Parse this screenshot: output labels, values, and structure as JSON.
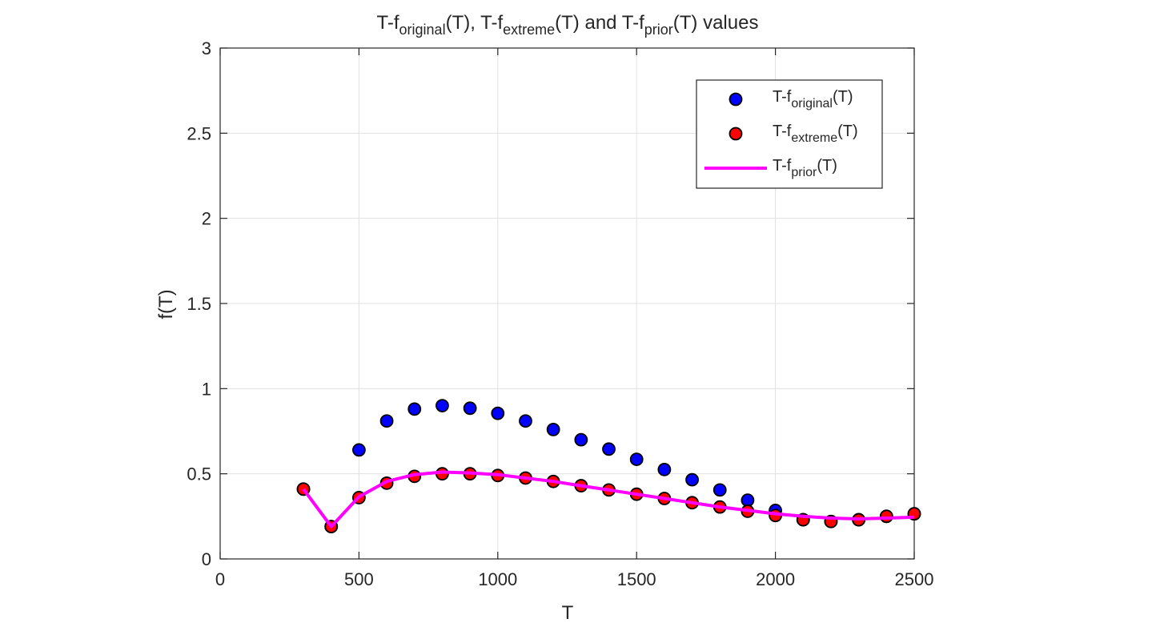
{
  "chart_data": {
    "type": "scatter",
    "title": {
      "parts": [
        {
          "text": "T-f",
          "sub": false
        },
        {
          "text": "original",
          "sub": true
        },
        {
          "text": "(T), T-f",
          "sub": false
        },
        {
          "text": "extreme",
          "sub": true
        },
        {
          "text": "(T) and T-f",
          "sub": false
        },
        {
          "text": "prior",
          "sub": true
        },
        {
          "text": "(T) values",
          "sub": false
        }
      ]
    },
    "xlabel": "T",
    "ylabel": "f(T)",
    "xlim": [
      0,
      2500
    ],
    "ylim": [
      0,
      3
    ],
    "xticks": [
      0,
      500,
      1000,
      1500,
      2000,
      2500
    ],
    "yticks": [
      0,
      0.5,
      1,
      1.5,
      2,
      2.5,
      3
    ],
    "xtick_labels": [
      "0",
      "500",
      "1000",
      "1500",
      "2000",
      "2500"
    ],
    "ytick_labels": [
      "0",
      "0.5",
      "1",
      "1.5",
      "2",
      "2.5",
      "3"
    ],
    "grid": true,
    "legend_position": "top-right",
    "series": [
      {
        "name": "T-foriginal(T)",
        "name_parts": [
          {
            "text": "T-f",
            "sub": false
          },
          {
            "text": "original",
            "sub": true
          },
          {
            "text": "(T)",
            "sub": false
          }
        ],
        "kind": "scatter",
        "color": "#0000ff",
        "x": [
          300,
          400,
          500,
          600,
          700,
          800,
          900,
          1000,
          1100,
          1200,
          1300,
          1400,
          1500,
          1600,
          1700,
          1800,
          1900,
          2000,
          2100,
          2200,
          2300,
          2400,
          2500
        ],
        "y": [
          0.41,
          0.19,
          0.64,
          0.81,
          0.88,
          0.9,
          0.885,
          0.855,
          0.81,
          0.76,
          0.7,
          0.645,
          0.585,
          0.525,
          0.465,
          0.405,
          0.345,
          0.285,
          0.23,
          0.22,
          0.23,
          0.25,
          0.265
        ]
      },
      {
        "name": "T-fextreme(T)",
        "name_parts": [
          {
            "text": "T-f",
            "sub": false
          },
          {
            "text": "extreme",
            "sub": true
          },
          {
            "text": "(T)",
            "sub": false
          }
        ],
        "kind": "scatter",
        "color": "#ff0000",
        "x": [
          300,
          400,
          500,
          600,
          700,
          800,
          900,
          1000,
          1100,
          1200,
          1300,
          1400,
          1500,
          1600,
          1700,
          1800,
          1900,
          2000,
          2100,
          2200,
          2300,
          2400,
          2500
        ],
        "y": [
          0.41,
          0.19,
          0.36,
          0.445,
          0.485,
          0.5,
          0.5,
          0.49,
          0.475,
          0.455,
          0.43,
          0.405,
          0.38,
          0.355,
          0.33,
          0.305,
          0.28,
          0.255,
          0.23,
          0.22,
          0.23,
          0.25,
          0.265
        ]
      },
      {
        "name": "T-fprior(T)",
        "name_parts": [
          {
            "text": "T-f",
            "sub": false
          },
          {
            "text": "prior",
            "sub": true
          },
          {
            "text": "(T)",
            "sub": false
          }
        ],
        "kind": "line",
        "color": "#ff00ff",
        "x": [
          300,
          400,
          500,
          600,
          700,
          800,
          900,
          1000,
          1100,
          1200,
          1300,
          1400,
          1500,
          1600,
          1700,
          1800,
          1900,
          2000,
          2100,
          2200,
          2300,
          2400,
          2500
        ],
        "y": [
          0.41,
          0.19,
          0.365,
          0.455,
          0.495,
          0.51,
          0.505,
          0.495,
          0.475,
          0.455,
          0.43,
          0.405,
          0.38,
          0.355,
          0.33,
          0.305,
          0.285,
          0.265,
          0.25,
          0.24,
          0.235,
          0.24,
          0.245
        ]
      }
    ]
  }
}
